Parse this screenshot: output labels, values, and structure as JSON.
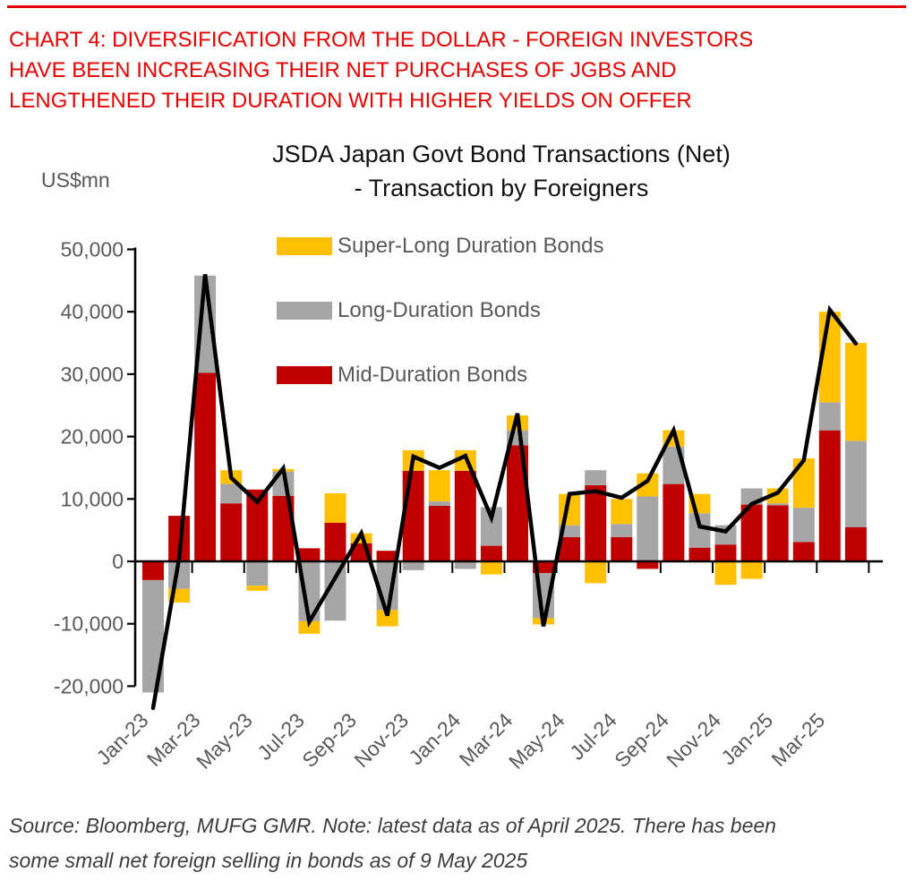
{
  "page": {
    "header_lines": [
      "CHART 4: DIVERSIFICATION FROM THE DOLLAR - FOREIGN INVESTORS",
      "HAVE BEEN INCREASING THEIR NET PURCHASES OF JGBS AND",
      "LENGTHENED THEIR DURATION WITH HIGHER YIELDS ON OFFER"
    ],
    "source_lines": [
      "Source: Bloomberg, MUFG GMR. Note: latest data as of April 2025. There has been",
      "some small net foreign selling in bonds as of 9 May 2025"
    ]
  },
  "colors": {
    "header-red": "#e60000",
    "axis-text": "#595959",
    "title-text": "#111111",
    "source-text": "#3d3d3d",
    "background": "#ffffff"
  },
  "chart_data": {
    "type": "bar",
    "subtype": "stacked-bars-with-line-overlay",
    "title_line1": "JSDA Japan Govt Bond Transactions (Net)",
    "title_line2": "- Transaction by Foreigners",
    "unit": "US$mn",
    "grid": "off",
    "legend_position": "inside-top-center",
    "ylim": [
      -24000,
      50000
    ],
    "categories": [
      "Jan-23",
      "Feb-23",
      "Mar-23",
      "Apr-23",
      "May-23",
      "Jun-23",
      "Jul-23",
      "Aug-23",
      "Sep-23",
      "Oct-23",
      "Nov-23",
      "Dec-23",
      "Jan-24",
      "Feb-24",
      "Mar-24",
      "Apr-24",
      "May-24",
      "Jun-24",
      "Jul-24",
      "Aug-24",
      "Sep-24",
      "Oct-24",
      "Nov-24",
      "Dec-24",
      "Jan-25",
      "Feb-25",
      "Mar-25",
      "Apr-25"
    ],
    "x_tick_labels": [
      "Jan-23",
      "Mar-23",
      "May-23",
      "Jul-23",
      "Sep-23",
      "Nov-23",
      "Jan-24",
      "Mar-24",
      "May-24",
      "Jul-24",
      "Sep-24",
      "Nov-24",
      "Jan-25",
      "Mar-25"
    ],
    "y_ticks": [
      "50,000",
      "40,000",
      "30,000",
      "20,000",
      "10,000",
      "0",
      "-10,000",
      "-20,000"
    ],
    "series": [
      {
        "name": "Mid-Duration Bonds",
        "color": "#C00000",
        "values": [
          -3000,
          7300,
          30200,
          9300,
          11500,
          10500,
          2100,
          6200,
          2900,
          1700,
          14500,
          8900,
          14500,
          2500,
          18600,
          -1900,
          3900,
          12200,
          3900,
          -1200,
          12400,
          2200,
          2700,
          9100,
          9000,
          3100,
          21000,
          5500
        ]
      },
      {
        "name": "Long-Duration Bonds",
        "color": "#A6A6A6",
        "values": [
          -18000,
          -4400,
          15600,
          3100,
          -3900,
          3900,
          -9600,
          -9500,
          0,
          -7800,
          -1400,
          700,
          -1200,
          6200,
          2400,
          -7200,
          1900,
          2400,
          2100,
          10400,
          6000,
          5500,
          3100,
          2600,
          300,
          5500,
          4500,
          13800
        ]
      },
      {
        "name": "Super-Long Duration Bonds",
        "color": "#FFC000",
        "values": [
          0,
          -2200,
          0,
          2200,
          -800,
          400,
          -2000,
          4700,
          1600,
          -2600,
          3300,
          5000,
          3300,
          -2100,
          2400,
          -1000,
          5000,
          -3500,
          4000,
          3700,
          2600,
          3100,
          -3750,
          -2800,
          2400,
          7900,
          14500,
          15700
        ]
      }
    ],
    "legend_order": [
      "Super-Long Duration Bonds",
      "Long-Duration Bonds",
      "Mid-Duration Bonds"
    ],
    "total_line": {
      "color": "#000000",
      "values": [
        -23500,
        500,
        46000,
        13400,
        9500,
        14900,
        -9700,
        -2600,
        4500,
        -8700,
        16800,
        15000,
        16900,
        7000,
        23700,
        -10400,
        10800,
        11250,
        10200,
        12900,
        21000,
        5600,
        4800,
        9200,
        11000,
        16200,
        40300,
        34900
      ]
    }
  }
}
